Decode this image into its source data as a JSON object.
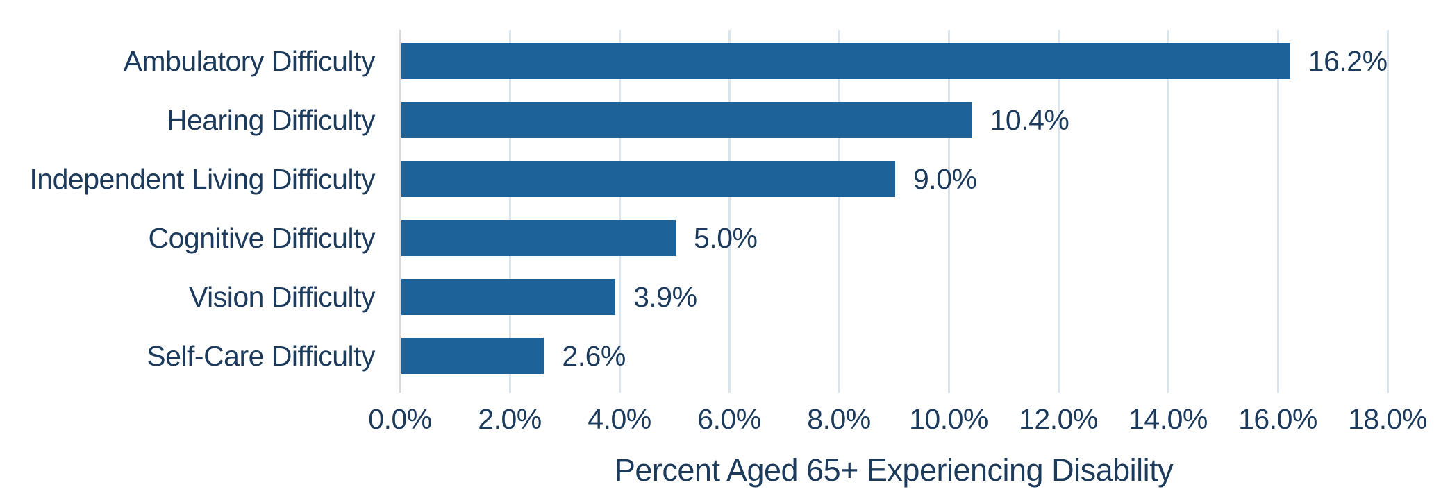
{
  "chart_data": {
    "type": "bar",
    "orientation": "horizontal",
    "title": "",
    "xlabel": "Percent Aged 65+ Experiencing Disability",
    "ylabel": "",
    "categories": [
      "Ambulatory Difficulty",
      "Hearing Difficulty",
      "Independent Living Difficulty",
      "Cognitive Difficulty",
      "Vision Difficulty",
      "Self-Care Difficulty"
    ],
    "values": [
      16.2,
      10.4,
      9.0,
      5.0,
      3.9,
      2.6
    ],
    "value_labels": [
      "16.2%",
      "10.4%",
      "9.0%",
      "5.0%",
      "3.9%",
      "2.6%"
    ],
    "xlim": [
      0,
      18
    ],
    "x_tick_values": [
      0,
      2,
      4,
      6,
      8,
      10,
      12,
      14,
      16,
      18
    ],
    "x_tick_labels": [
      "0.0%",
      "2.0%",
      "4.0%",
      "6.0%",
      "8.0%",
      "10.0%",
      "12.0%",
      "14.0%",
      "16.0%",
      "18.0%"
    ],
    "grid": true,
    "legend": false,
    "colors": {
      "bar": "#1D6399",
      "text": "#1B3A5C",
      "gridline": "#DAE5F0",
      "axis_line": "#D9D9D9",
      "background": "#FFFFFF"
    }
  }
}
